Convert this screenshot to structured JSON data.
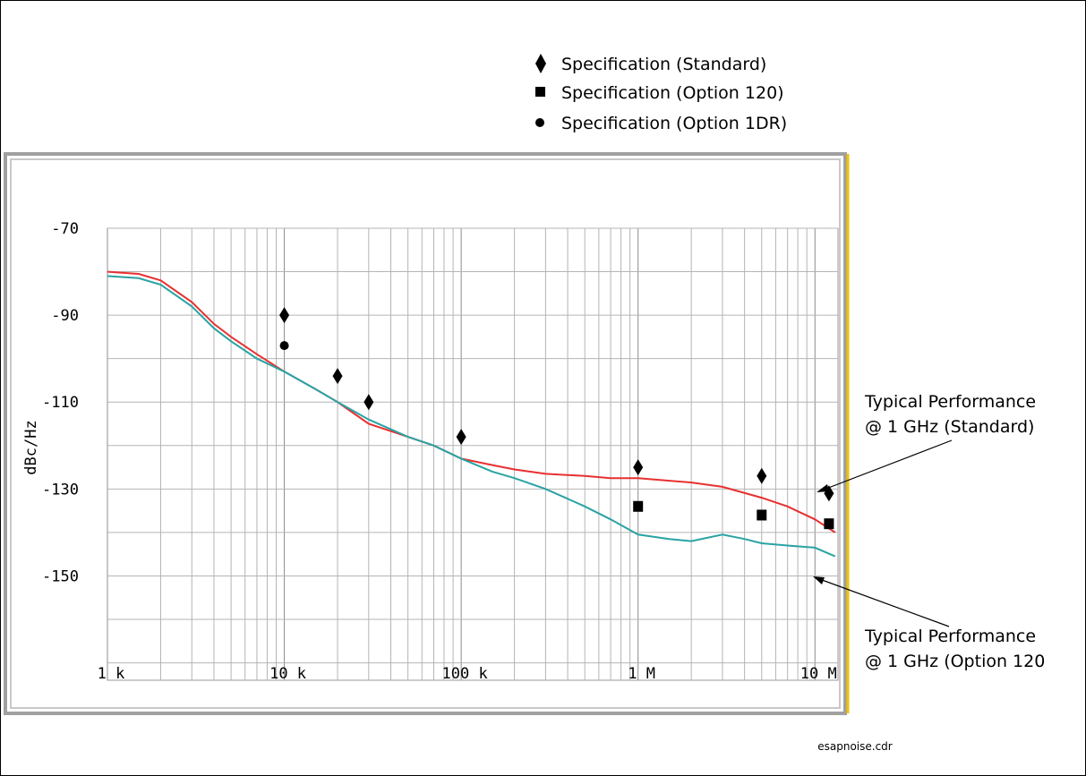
{
  "chart_data": {
    "type": "line",
    "title": "",
    "xlabel": "",
    "ylabel": "dBc/Hz",
    "x_scale": "log",
    "xlim": [
      1000,
      13500000
    ],
    "ylim": [
      -174,
      -70
    ],
    "x_ticks": [
      {
        "value": 1000,
        "label": "1 k"
      },
      {
        "value": 10000,
        "label": "10 k"
      },
      {
        "value": 100000,
        "label": "100 k"
      },
      {
        "value": 1000000,
        "label": "1 M"
      },
      {
        "value": 10000000,
        "label": "10 M"
      }
    ],
    "y_ticks": [
      {
        "value": -70,
        "label": "-70"
      },
      {
        "value": -90,
        "label": "-90"
      },
      {
        "value": -110,
        "label": "-110"
      },
      {
        "value": -130,
        "label": "-130"
      },
      {
        "value": -150,
        "label": "-150"
      }
    ],
    "grid": true,
    "legend": {
      "position": "top-right",
      "entries": [
        {
          "label": "Specification (Standard)",
          "marker": "diamond"
        },
        {
          "label": "Specification (Option 120)",
          "marker": "square"
        },
        {
          "label": "Specification (Option 1DR)",
          "marker": "circle"
        }
      ]
    },
    "series": [
      {
        "color": "#e83030",
        "x": [
          1000,
          1500,
          2000,
          3000,
          4000,
          5000,
          7000,
          10000,
          15000,
          20000,
          30000,
          50000,
          70000,
          100000,
          150000,
          200000,
          300000,
          500000,
          700000,
          1000000,
          2000000,
          3000000,
          5000000,
          7000000,
          10000000,
          13000000
        ],
        "y": [
          -80,
          -80.5,
          -82,
          -87,
          -92,
          -95,
          -99,
          -103,
          -107,
          -110,
          -115,
          -118,
          -120,
          -123,
          -124.5,
          -125.5,
          -126.5,
          -127,
          -127.5,
          -127.5,
          -128.5,
          -129.5,
          -132,
          -134,
          -137,
          -140
        ]
      },
      {
        "color": "#2aa3a3",
        "x": [
          1000,
          1500,
          2000,
          3000,
          4000,
          5000,
          7000,
          10000,
          15000,
          20000,
          30000,
          50000,
          70000,
          100000,
          150000,
          200000,
          300000,
          500000,
          700000,
          1000000,
          1500000,
          2000000,
          3000000,
          4000000,
          5000000,
          7000000,
          10000000,
          13000000
        ],
        "y": [
          -81,
          -81.5,
          -83,
          -88,
          -93,
          -96,
          -100,
          -103,
          -107,
          -110,
          -114,
          -118,
          -120,
          -123,
          -126,
          -127.5,
          -130,
          -134,
          -137,
          -140.5,
          -141.5,
          -142,
          -140.5,
          -141.5,
          -142.5,
          -143,
          -143.5,
          -145.5
        ]
      }
    ],
    "spec_points": {
      "standard": [
        {
          "x": 10000,
          "y": -90
        },
        {
          "x": 20000,
          "y": -104
        },
        {
          "x": 30000,
          "y": -110
        },
        {
          "x": 100000,
          "y": -118
        },
        {
          "x": 1000000,
          "y": -125
        },
        {
          "x": 5000000,
          "y": -127
        },
        {
          "x": 12000000,
          "y": -131
        }
      ],
      "option_120": [
        {
          "x": 1000000,
          "y": -134
        },
        {
          "x": 5000000,
          "y": -136
        },
        {
          "x": 12000000,
          "y": -138
        }
      ],
      "option_1dr": [
        {
          "x": 10000,
          "y": -97
        }
      ]
    },
    "annotations": [
      {
        "lines": [
          "Typical Performance",
          "@ 1 GHz (Standard)"
        ],
        "points_to_series": 0
      },
      {
        "lines": [
          "Typical Performance",
          "@ 1 GHz (Option 120"
        ],
        "points_to_series": 1
      }
    ],
    "footer": "esapnoise.cdr"
  }
}
